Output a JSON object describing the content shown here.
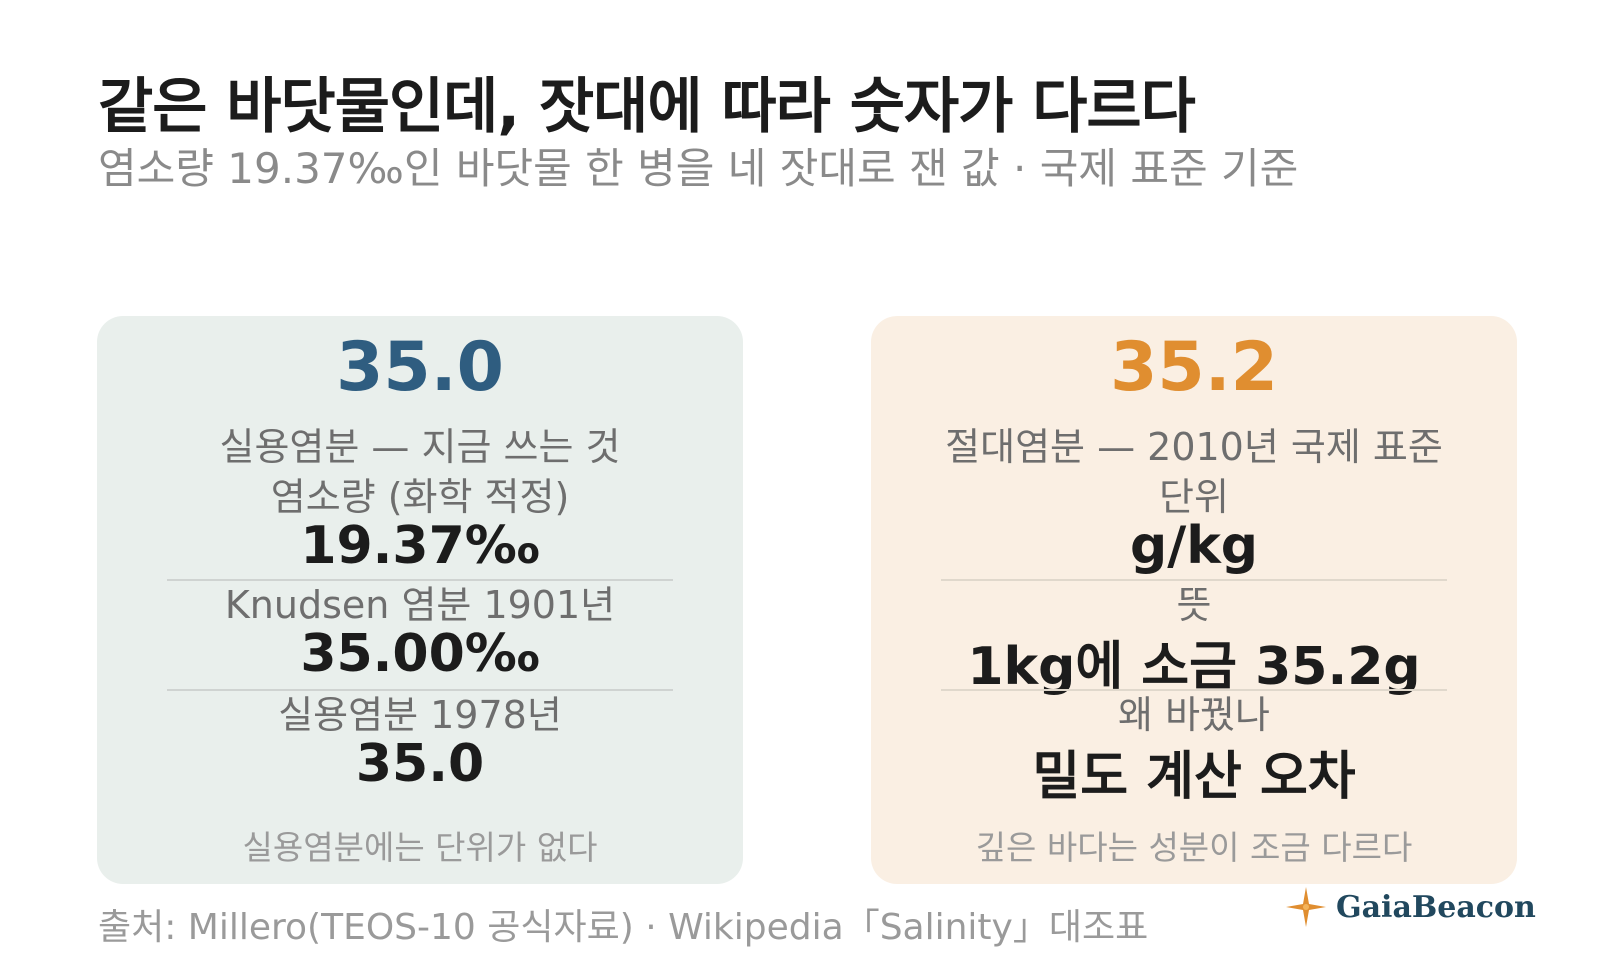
{
  "title": "같은 바닷물인데, 잣대에 따라 숫자가 다르다",
  "subtitle": "염소량 19.37‰인 바닷물 한 병을 네 잣대로 잰 값 · 국제 표준 기준",
  "left_card": {
    "headline": "35.0",
    "caption": "실용염분 — 지금 쓰는 것",
    "rows": [
      {
        "label": "염소량 (화학 적정)",
        "value": "19.37‰"
      },
      {
        "label": "Knudsen 염분 1901년",
        "value": "35.00‰"
      },
      {
        "label": "실용염분 1978년",
        "value": "35.0"
      }
    ],
    "footnote": "실용염분에는 단위가 없다",
    "accent_color": "#2f5d80",
    "bg_color": "#e9efec"
  },
  "right_card": {
    "headline": "35.2",
    "caption": "절대염분 — 2010년 국제 표준",
    "rows": [
      {
        "label": "단위",
        "value": "g/kg"
      },
      {
        "label": "뜻",
        "value": "1kg에 소금 35.2g"
      },
      {
        "label": "왜 바꿨나",
        "value": "밀도 계산 오차"
      }
    ],
    "footnote": "깊은 바다는 성분이 조금 다르다",
    "accent_color": "#e08e30",
    "bg_color": "#faefe3"
  },
  "source": "출처: Millero(TEOS-10 공식자료) · Wikipedia「Salinity」대조표",
  "brand": {
    "name": "GaiaBeacon",
    "icon": "compass-star-icon"
  }
}
